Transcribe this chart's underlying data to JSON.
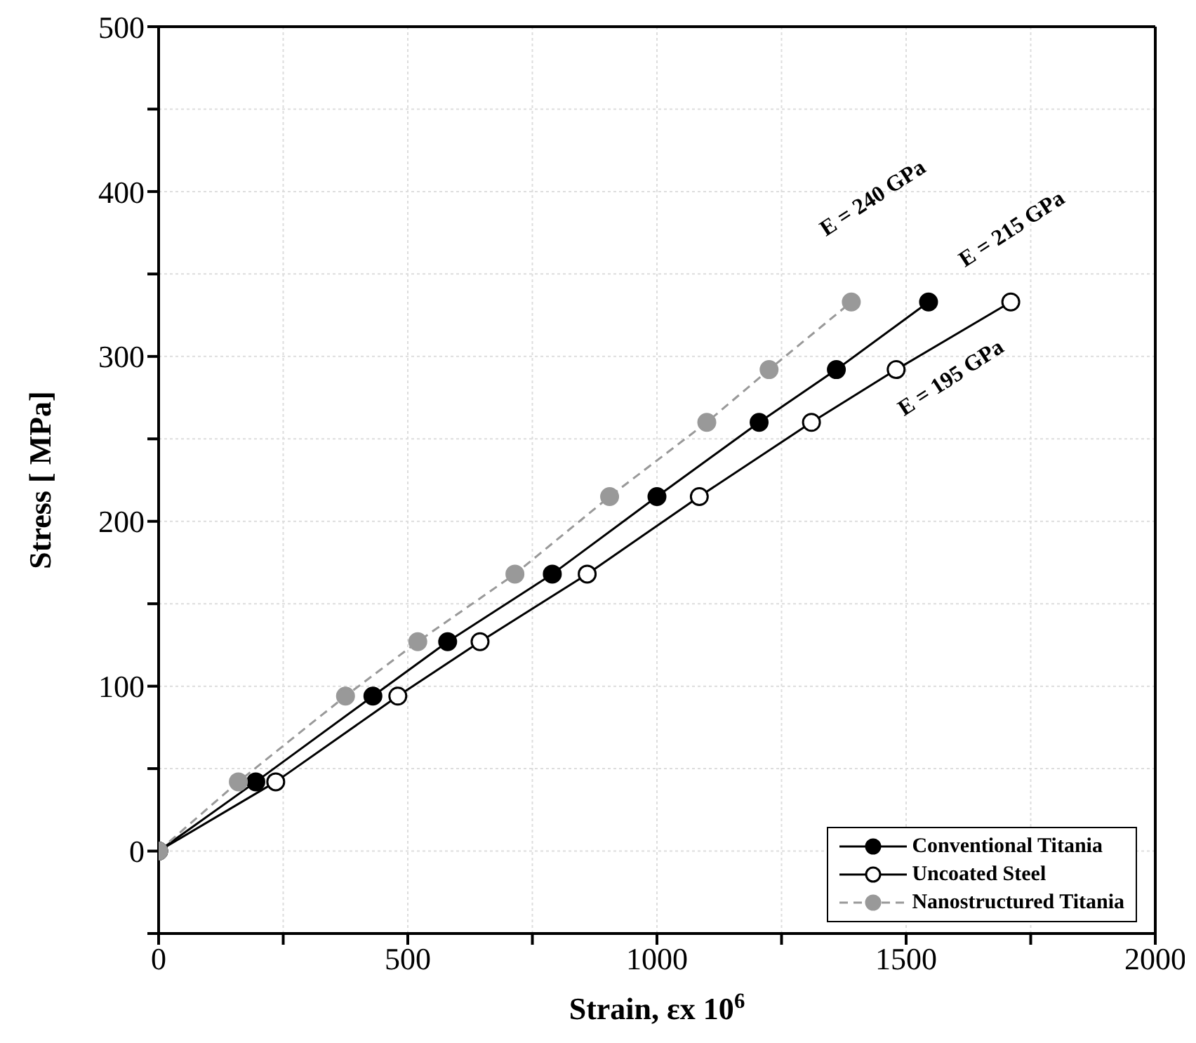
{
  "chart_data": {
    "type": "line",
    "xlabel": "Strain, εx 10$^{6}$",
    "ylabel": "Stress [ MPa]",
    "xlim": [
      0,
      2000
    ],
    "ylim": [
      -50,
      500
    ],
    "xticks": [
      0,
      {
        "value": 250,
        "label": null
      },
      500,
      {
        "value": 750,
        "label": null
      },
      1000,
      {
        "value": 1250,
        "label": null
      },
      1500,
      {
        "value": 1750,
        "label": null
      },
      2000
    ],
    "yticks": [
      {
        "value": -50,
        "label": null
      },
      0,
      {
        "value": 50,
        "label": null
      },
      100,
      {
        "value": 150,
        "label": null
      },
      200,
      {
        "value": 250,
        "label": null
      },
      300,
      {
        "value": 350,
        "label": null
      },
      400,
      {
        "value": 450,
        "label": null
      },
      500
    ],
    "grid": true,
    "legend": "bottom right",
    "marker": "circle",
    "series": [
      {
        "name": "Conventional Titania",
        "color": "#000000",
        "line_style": "solid",
        "x": [
          0,
          195,
          430,
          580,
          790,
          1000,
          1205,
          1360,
          1545
        ],
        "values": [
          0,
          42,
          94,
          127,
          168,
          215,
          260,
          292,
          333
        ]
      },
      {
        "name": "Uncoated Steel",
        "color": "#000000",
        "line_style": "solid",
        "x": [
          0,
          235,
          480,
          645,
          860,
          1085,
          1310,
          1480,
          1710
        ],
        "values": [
          0,
          42,
          94,
          127,
          168,
          215,
          260,
          292,
          333
        ]
      },
      {
        "name": "Nanostructured Titania",
        "color": "#999999",
        "line_style": "dashed",
        "x": [
          0,
          160,
          375,
          520,
          715,
          905,
          1100,
          1225,
          1390
        ],
        "values": [
          0,
          42,
          94,
          127,
          168,
          215,
          260,
          292,
          333
        ]
      }
    ],
    "annotations": [
      "E = 215 GPa",
      "E = 195 GPa",
      "E = 240 GPa"
    ]
  }
}
